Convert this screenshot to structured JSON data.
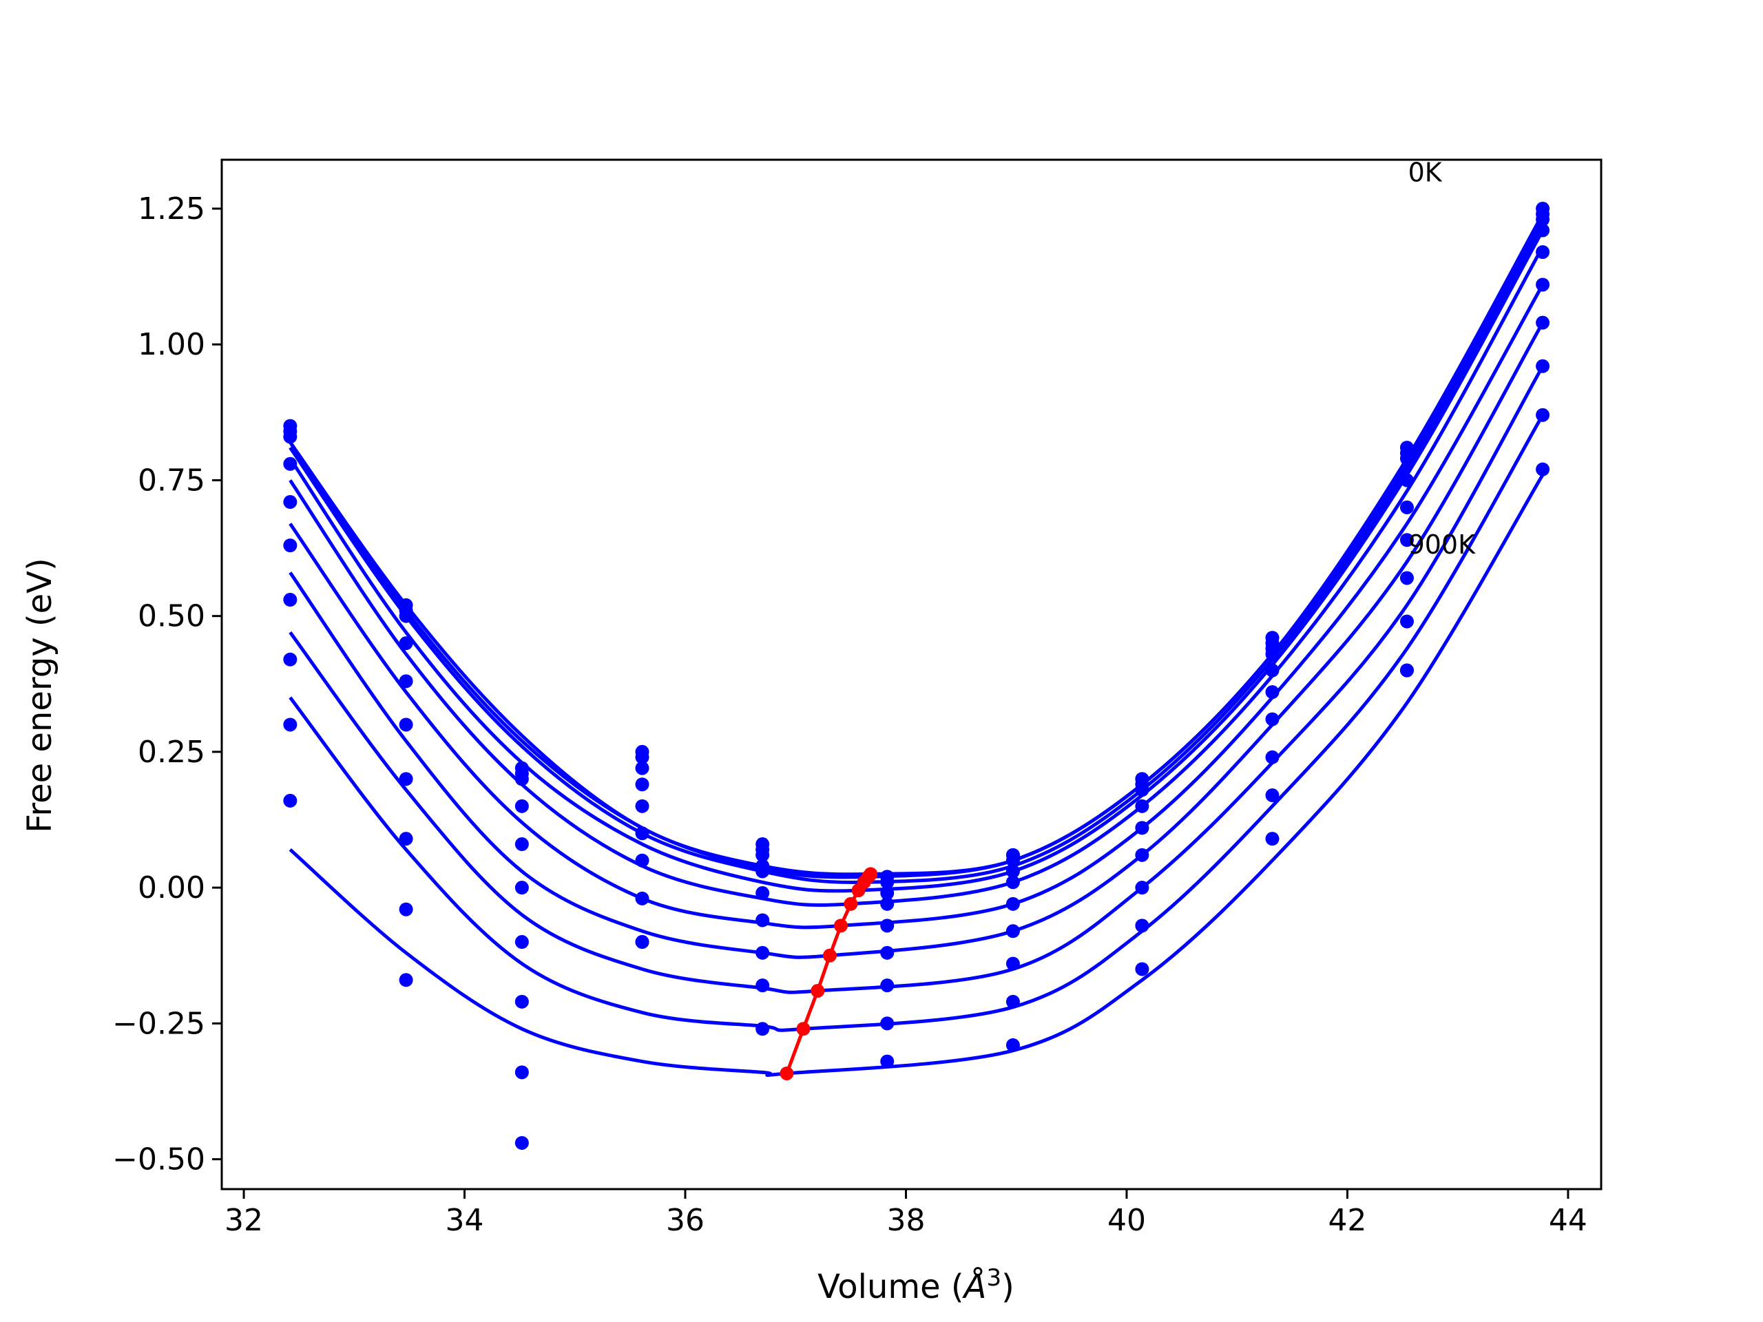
{
  "chart_data": {
    "type": "line",
    "title": "",
    "xlabel_text": "Volume (",
    "xlabel_unit": "Å",
    "xlabel_exp": "3",
    "xlabel_close": ")",
    "ylabel": "Free energy (eV)",
    "xlim": [
      31.8,
      44.3
    ],
    "ylim": [
      -0.555,
      1.34
    ],
    "xticks": [
      32,
      34,
      36,
      38,
      40,
      42,
      44
    ],
    "xtick_labels": [
      "32",
      "34",
      "36",
      "38",
      "40",
      "42",
      "44"
    ],
    "yticks": [
      -0.5,
      -0.25,
      0.0,
      0.25,
      0.5,
      0.75,
      1.0,
      1.25
    ],
    "ytick_labels": [
      "−0.50",
      "−0.25",
      "0.00",
      "0.25",
      "0.50",
      "0.75",
      "1.00",
      "1.25"
    ],
    "grid": false,
    "colors": {
      "fit": "#0000ff",
      "points": "#0000ff",
      "minimum": "#ff0000",
      "axes": "#000000"
    },
    "annotations": [
      {
        "text": "0K",
        "x": 42.55,
        "y": 1.3
      },
      {
        "text": "900K",
        "x": 42.55,
        "y": 0.615
      }
    ],
    "volumes": [
      32.42,
      33.47,
      34.52,
      35.61,
      36.7,
      37.83,
      38.97,
      40.14,
      41.32,
      42.54,
      43.77
    ],
    "series": [
      {
        "energies": [
          0.85,
          0.52,
          0.22,
          0.25,
          0.08,
          0.02,
          0.06,
          0.2,
          0.46,
          0.81,
          1.25
        ],
        "fit_x": [
          32.42,
          33.47,
          34.52,
          35.61,
          36.7,
          37.68,
          38.97,
          40.14,
          41.32,
          42.54,
          43.77
        ],
        "fit_y": [
          0.82,
          0.52,
          0.28,
          0.11,
          0.04,
          0.025,
          0.05,
          0.19,
          0.43,
          0.79,
          1.24
        ],
        "min_v": 37.68,
        "min_f": 0.025
      },
      {
        "energies": [
          0.84,
          0.51,
          0.21,
          0.24,
          0.07,
          0.02,
          0.06,
          0.2,
          0.45,
          0.8,
          1.24
        ],
        "fit_x": [
          32.42,
          33.47,
          34.52,
          35.61,
          36.7,
          37.66,
          38.97,
          40.14,
          41.32,
          42.54,
          43.77
        ],
        "fit_y": [
          0.82,
          0.51,
          0.27,
          0.11,
          0.035,
          0.02,
          0.05,
          0.19,
          0.43,
          0.78,
          1.23
        ],
        "min_v": 37.66,
        "min_f": 0.02
      },
      {
        "energies": [
          0.83,
          0.5,
          0.2,
          0.22,
          0.06,
          0.01,
          0.05,
          0.19,
          0.44,
          0.79,
          1.23
        ],
        "fit_x": [
          32.42,
          33.47,
          34.52,
          35.61,
          36.7,
          37.62,
          38.97,
          40.14,
          41.32,
          42.54,
          43.77
        ],
        "fit_y": [
          0.81,
          0.5,
          0.26,
          0.1,
          0.03,
          0.01,
          0.04,
          0.18,
          0.42,
          0.77,
          1.22
        ],
        "min_v": 37.62,
        "min_f": 0.01
      },
      {
        "energies": [
          0.78,
          0.45,
          0.15,
          0.19,
          0.04,
          -0.01,
          0.03,
          0.18,
          0.43,
          0.75,
          1.21
        ],
        "fit_x": [
          32.42,
          33.47,
          34.52,
          35.61,
          36.7,
          37.57,
          38.97,
          40.14,
          41.32,
          42.54,
          43.77
        ],
        "fit_y": [
          0.79,
          0.47,
          0.23,
          0.08,
          0.01,
          -0.005,
          0.03,
          0.17,
          0.41,
          0.76,
          1.21
        ],
        "min_v": 37.57,
        "min_f": -0.005
      },
      {
        "energies": [
          0.71,
          0.38,
          0.08,
          0.15,
          0.03,
          -0.03,
          0.01,
          0.15,
          0.4,
          0.7,
          1.17
        ],
        "fit_x": [
          32.42,
          33.47,
          34.52,
          35.61,
          36.7,
          37.5,
          38.97,
          40.14,
          41.32,
          42.54,
          43.77
        ],
        "fit_y": [
          0.75,
          0.43,
          0.19,
          0.04,
          -0.02,
          -0.03,
          0.01,
          0.15,
          0.39,
          0.73,
          1.18
        ],
        "min_v": 37.5,
        "min_f": -0.03
      },
      {
        "energies": [
          0.63,
          0.3,
          0.0,
          0.1,
          -0.01,
          -0.07,
          -0.03,
          0.11,
          0.36,
          0.64,
          1.11
        ],
        "fit_x": [
          32.42,
          33.47,
          34.52,
          35.61,
          36.7,
          37.41,
          38.97,
          40.14,
          41.32,
          42.54,
          43.77
        ],
        "fit_y": [
          0.67,
          0.36,
          0.12,
          -0.02,
          -0.065,
          -0.07,
          -0.03,
          0.11,
          0.35,
          0.67,
          1.11
        ],
        "min_v": 37.41,
        "min_f": -0.07
      },
      {
        "energies": [
          0.53,
          0.2,
          -0.1,
          0.05,
          -0.06,
          -0.12,
          -0.08,
          0.06,
          0.31,
          0.57,
          1.04
        ],
        "fit_x": [
          32.42,
          33.47,
          34.52,
          35.61,
          36.7,
          37.31,
          38.97,
          40.14,
          41.32,
          42.54,
          43.77
        ],
        "fit_y": [
          0.58,
          0.27,
          0.03,
          -0.08,
          -0.12,
          -0.125,
          -0.08,
          0.06,
          0.3,
          0.6,
          1.04
        ],
        "min_v": 37.31,
        "min_f": -0.125
      },
      {
        "energies": [
          0.42,
          0.09,
          -0.21,
          -0.02,
          -0.12,
          -0.18,
          -0.14,
          0.0,
          0.24,
          0.49,
          0.96
        ],
        "fit_x": [
          32.42,
          33.47,
          34.52,
          35.61,
          36.7,
          37.2,
          38.97,
          40.14,
          41.32,
          42.54,
          43.77
        ],
        "fit_y": [
          0.47,
          0.18,
          -0.05,
          -0.15,
          -0.185,
          -0.19,
          -0.15,
          0.0,
          0.23,
          0.52,
          0.96
        ],
        "min_v": 37.2,
        "min_f": -0.19
      },
      {
        "energies": [
          0.3,
          -0.04,
          -0.34,
          -0.1,
          -0.18,
          -0.25,
          -0.21,
          -0.07,
          0.17,
          0.4,
          0.87
        ],
        "fit_x": [
          32.42,
          33.47,
          34.52,
          35.61,
          36.7,
          37.07,
          38.97,
          40.14,
          41.32,
          42.54,
          43.77
        ],
        "fit_y": [
          0.35,
          0.07,
          -0.14,
          -0.23,
          -0.255,
          -0.26,
          -0.22,
          -0.08,
          0.15,
          0.44,
          0.87
        ],
        "min_v": 37.07,
        "min_f": -0.26
      },
      {
        "energies": [
          0.16,
          -0.17,
          -0.47,
          -0.1,
          -0.26,
          -0.32,
          -0.29,
          -0.15,
          0.09,
          0.4,
          0.77
        ],
        "fit_x": [
          32.42,
          33.47,
          34.52,
          35.61,
          36.7,
          36.92,
          38.97,
          40.14,
          41.32,
          42.54,
          43.77
        ],
        "fit_y": [
          0.07,
          -0.12,
          -0.26,
          -0.32,
          -0.34,
          -0.342,
          -0.3,
          -0.17,
          0.05,
          0.34,
          0.76
        ],
        "min_v": 36.92,
        "min_f": -0.342
      }
    ]
  }
}
